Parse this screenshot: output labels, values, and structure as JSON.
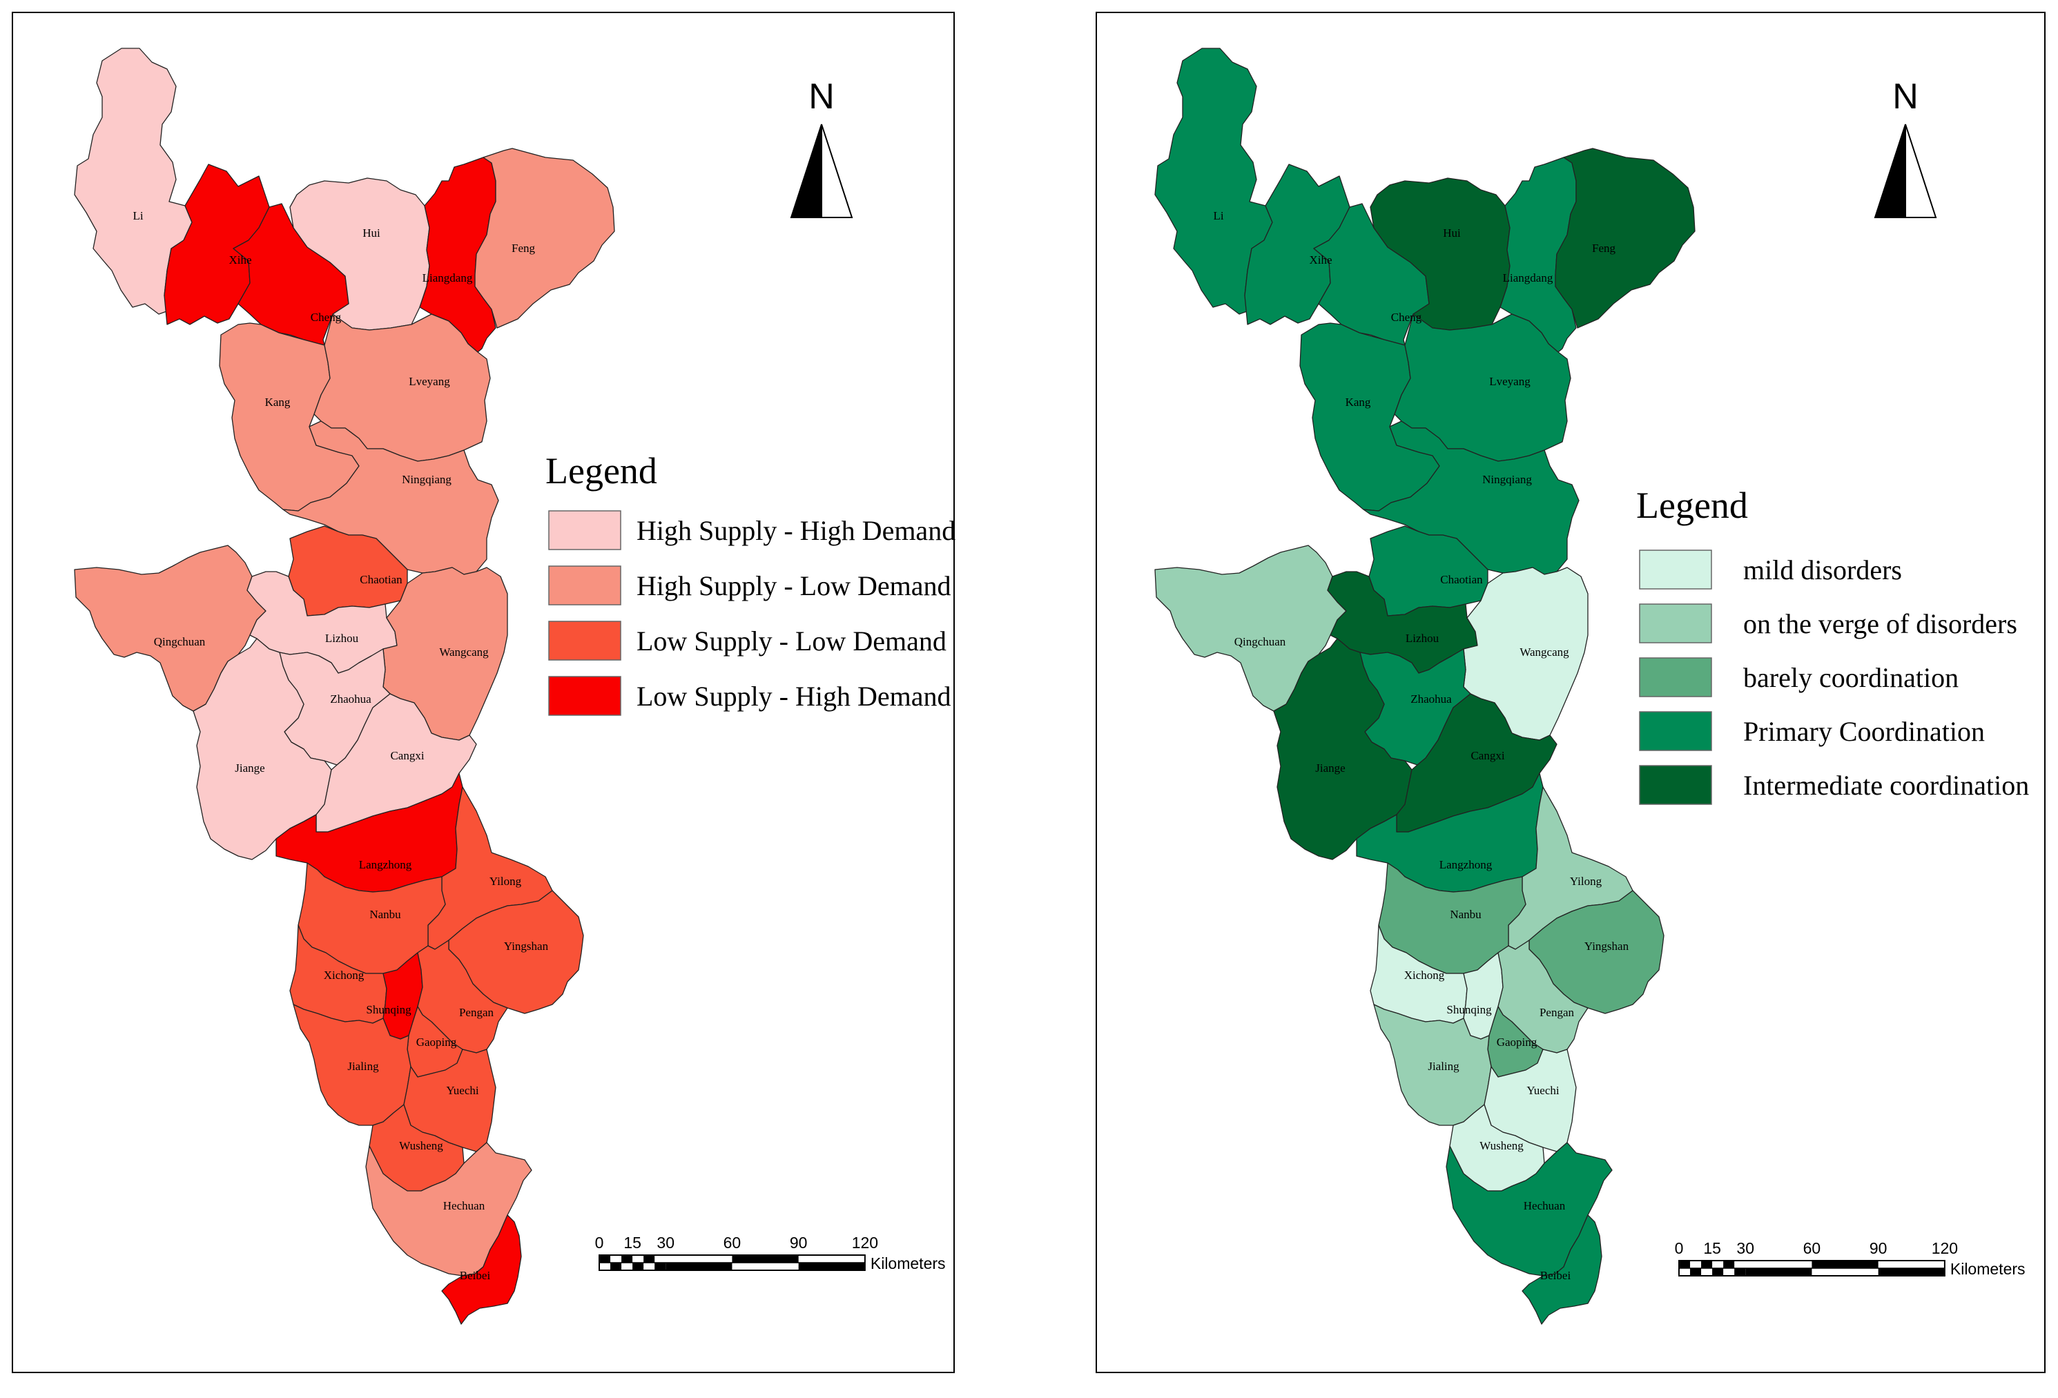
{
  "panels": [
    {
      "id": "supply-demand",
      "north_label": "N",
      "legend_title": "Legend",
      "legend": [
        {
          "label": "High Supply - High Demand",
          "color": "#fccaca"
        },
        {
          "label": "High Supply - Low Demand",
          "color": "#f79280"
        },
        {
          "label": "Low Supply - Low Demand",
          "color": "#f95237"
        },
        {
          "label": "Low Supply - High Demand",
          "color": "#f90000"
        }
      ],
      "scale_ticks": [
        "0",
        "15",
        "30",
        "60",
        "90",
        "120"
      ],
      "scale_unit": "Kilometers",
      "counties": {
        "Li": "High Supply - High Demand",
        "Xihe": "Low Supply - High Demand",
        "Hui": "High Supply - High Demand",
        "Liangdang": "Low Supply - High Demand",
        "Feng": "High Supply - Low Demand",
        "Cheng": "Low Supply - High Demand",
        "Kang": "High Supply - Low Demand",
        "Lveyang": "High Supply - Low Demand",
        "Ningqiang": "High Supply - Low Demand",
        "Chaotian": "Low Supply - Low Demand",
        "Qingchuan": "High Supply - Low Demand",
        "Lizhou": "High Supply - High Demand",
        "Wangcang": "High Supply - Low Demand",
        "Zhaohua": "High Supply - High Demand",
        "Jiange": "High Supply - High Demand",
        "Cangxi": "High Supply - High Demand",
        "Langzhong": "Low Supply - High Demand",
        "Yilong": "Low Supply - Low Demand",
        "Nanbu": "Low Supply - Low Demand",
        "Yingshan": "Low Supply - Low Demand",
        "Xichong": "Low Supply - Low Demand",
        "Shunqing": "Low Supply - High Demand",
        "Pengan": "Low Supply - Low Demand",
        "Gaoping": "Low Supply - Low Demand",
        "Jialing": "Low Supply - Low Demand",
        "Yuechi": "Low Supply - Low Demand",
        "Wusheng": "Low Supply - Low Demand",
        "Hechuan": "High Supply - Low Demand",
        "Beibei": "Low Supply - High Demand"
      }
    },
    {
      "id": "coordination",
      "north_label": "N",
      "legend_title": "Legend",
      "legend": [
        {
          "label": "mild disorders",
          "color": "#d3f3e5"
        },
        {
          "label": "on the verge of disorders",
          "color": "#98d0b3"
        },
        {
          "label": "barely coordination",
          "color": "#5aaa7e"
        },
        {
          "label": "Primary Coordination",
          "color": "#008a55"
        },
        {
          "label": "Intermediate coordination",
          "color": "#00612c"
        }
      ],
      "scale_ticks": [
        "0",
        "15",
        "30",
        "60",
        "90",
        "120"
      ],
      "scale_unit": "Kilometers",
      "counties": {
        "Li": "Primary Coordination",
        "Xihe": "Primary Coordination",
        "Hui": "Intermediate coordination",
        "Liangdang": "Primary Coordination",
        "Feng": "Intermediate coordination",
        "Cheng": "Primary Coordination",
        "Kang": "Primary Coordination",
        "Lveyang": "Primary Coordination",
        "Ningqiang": "Primary Coordination",
        "Chaotian": "Primary Coordination",
        "Qingchuan": "on the verge of disorders",
        "Lizhou": "Intermediate coordination",
        "Wangcang": "mild disorders",
        "Zhaohua": "Primary Coordination",
        "Jiange": "Intermediate coordination",
        "Cangxi": "Intermediate coordination",
        "Langzhong": "Primary Coordination",
        "Yilong": "on the verge of disorders",
        "Nanbu": "barely coordination",
        "Yingshan": "barely coordination",
        "Xichong": "mild disorders",
        "Shunqing": "mild disorders",
        "Pengan": "on the verge of disorders",
        "Gaoping": "barely coordination",
        "Jialing": "on the verge of disorders",
        "Yuechi": "mild disorders",
        "Wusheng": "mild disorders",
        "Hechuan": "Primary Coordination",
        "Beibei": "Primary Coordination"
      }
    }
  ]
}
